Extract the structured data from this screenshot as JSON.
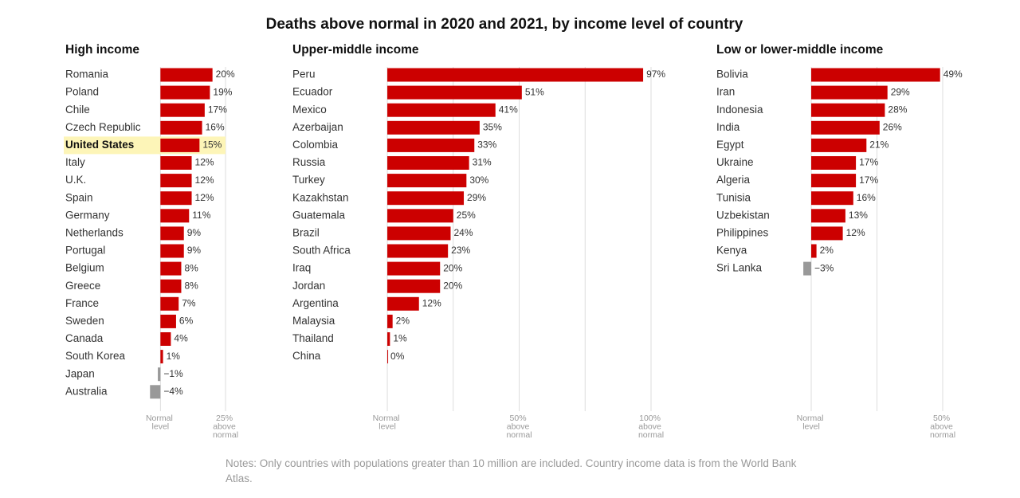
{
  "title": "Deaths above normal in 2020 and 2021, by income level of country",
  "notes": "Notes: Only countries with populations greater than 10 million are included. Country income data is from the World Bank Atlas.",
  "chart_data": [
    {
      "type": "bar",
      "orientation": "horizontal",
      "title": "High income",
      "categories": [
        "Romania",
        "Poland",
        "Chile",
        "Czech Republic",
        "United States",
        "Italy",
        "U.K.",
        "Spain",
        "Germany",
        "Netherlands",
        "Portugal",
        "Belgium",
        "Greece",
        "France",
        "Sweden",
        "Canada",
        "South Korea",
        "Japan",
        "Australia"
      ],
      "values": [
        20,
        19,
        17,
        16,
        15,
        12,
        12,
        12,
        11,
        9,
        9,
        8,
        8,
        7,
        6,
        4,
        1,
        -1,
        -4
      ],
      "value_labels": [
        "20%",
        "19%",
        "17%",
        "16%",
        "15%",
        "12%",
        "12%",
        "12%",
        "11%",
        "9%",
        "9%",
        "8%",
        "8%",
        "7%",
        "6%",
        "4%",
        "1%",
        "−1%",
        "−4%"
      ],
      "highlight_index": 4,
      "color": "#cc0000",
      "negative_color": "#999999",
      "xlim": [
        -5,
        25
      ],
      "xgrid": [
        0,
        25
      ],
      "xticks": [
        {
          "value": 0,
          "label": "Normal level"
        },
        {
          "value": 25,
          "label": "25% above normal"
        }
      ]
    },
    {
      "type": "bar",
      "orientation": "horizontal",
      "title": "Upper-middle income",
      "categories": [
        "Peru",
        "Ecuador",
        "Mexico",
        "Azerbaijan",
        "Colombia",
        "Russia",
        "Turkey",
        "Kazakhstan",
        "Guatemala",
        "Brazil",
        "South Africa",
        "Iraq",
        "Jordan",
        "Argentina",
        "Malaysia",
        "Thailand",
        "China"
      ],
      "values": [
        97,
        51,
        41,
        35,
        33,
        31,
        30,
        29,
        25,
        24,
        23,
        20,
        20,
        12,
        2,
        1,
        0
      ],
      "value_labels": [
        "97%",
        "51%",
        "41%",
        "35%",
        "33%",
        "31%",
        "30%",
        "29%",
        "25%",
        "24%",
        "23%",
        "20%",
        "20%",
        "12%",
        "2%",
        "1%",
        "0%"
      ],
      "color": "#cc0000",
      "negative_color": "#999999",
      "xlim": [
        -5,
        100
      ],
      "xgrid": [
        0,
        25,
        50,
        75,
        100
      ],
      "xticks": [
        {
          "value": 0,
          "label": "Normal level"
        },
        {
          "value": 50,
          "label": "50% above normal"
        },
        {
          "value": 100,
          "label": "100% above normal"
        }
      ]
    },
    {
      "type": "bar",
      "orientation": "horizontal",
      "title": "Low or lower-middle income",
      "categories": [
        "Bolivia",
        "Iran",
        "Indonesia",
        "India",
        "Egypt",
        "Ukraine",
        "Algeria",
        "Tunisia",
        "Uzbekistan",
        "Philippines",
        "Kenya",
        "Sri Lanka"
      ],
      "values": [
        49,
        29,
        28,
        26,
        21,
        17,
        17,
        16,
        13,
        12,
        2,
        -3
      ],
      "value_labels": [
        "49%",
        "29%",
        "28%",
        "26%",
        "21%",
        "17%",
        "17%",
        "16%",
        "13%",
        "12%",
        "2%",
        "−3%"
      ],
      "color": "#cc0000",
      "negative_color": "#999999",
      "xlim": [
        -5,
        50
      ],
      "xgrid": [
        0,
        25,
        50
      ],
      "xticks": [
        {
          "value": 0,
          "label": "Normal level"
        },
        {
          "value": 50,
          "label": "50% above normal"
        }
      ]
    }
  ]
}
